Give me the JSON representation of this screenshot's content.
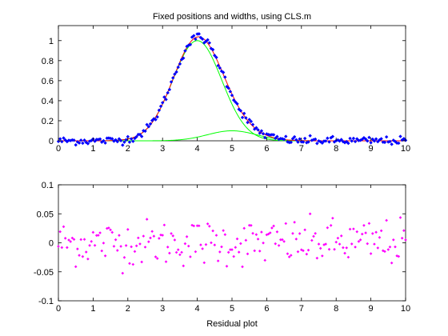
{
  "chart_data": [
    {
      "type": "scatter",
      "title": "Fixed positions and widths, using CLS.m",
      "xlabel": "",
      "ylabel": "",
      "xlim": [
        0,
        10
      ],
      "ylim": [
        0,
        1.15
      ],
      "xticks": [
        "0",
        "1",
        "2",
        "3",
        "4",
        "5",
        "6",
        "7",
        "8",
        "9",
        "10"
      ],
      "yticks": [
        "0",
        "0.2",
        "0.4",
        "0.6",
        "0.8",
        "1"
      ],
      "grid": false,
      "colors": {
        "data": "#0000ff",
        "fit": "#ff0000",
        "components": "#00ff00"
      },
      "peaks": [
        {
          "position": 4,
          "width": 1.66,
          "height": 1.0
        },
        {
          "position": 5,
          "width": 1.66,
          "height": 0.1
        }
      ],
      "data_points": {
        "x_start": 0,
        "x_end": 10,
        "count": 201,
        "noise_sd": 0.02
      }
    },
    {
      "type": "scatter",
      "title": "",
      "xlabel": "Residual plot",
      "ylabel": "",
      "xlim": [
        0,
        10
      ],
      "ylim": [
        -0.1,
        0.1
      ],
      "xticks": [
        "0",
        "1",
        "2",
        "3",
        "4",
        "5",
        "6",
        "7",
        "8",
        "9",
        "10"
      ],
      "yticks": [
        "-0.1",
        "-0.05",
        "0",
        "0.05",
        "0.1"
      ],
      "grid": false,
      "colors": {
        "residuals": "#ff00ff"
      }
    }
  ]
}
